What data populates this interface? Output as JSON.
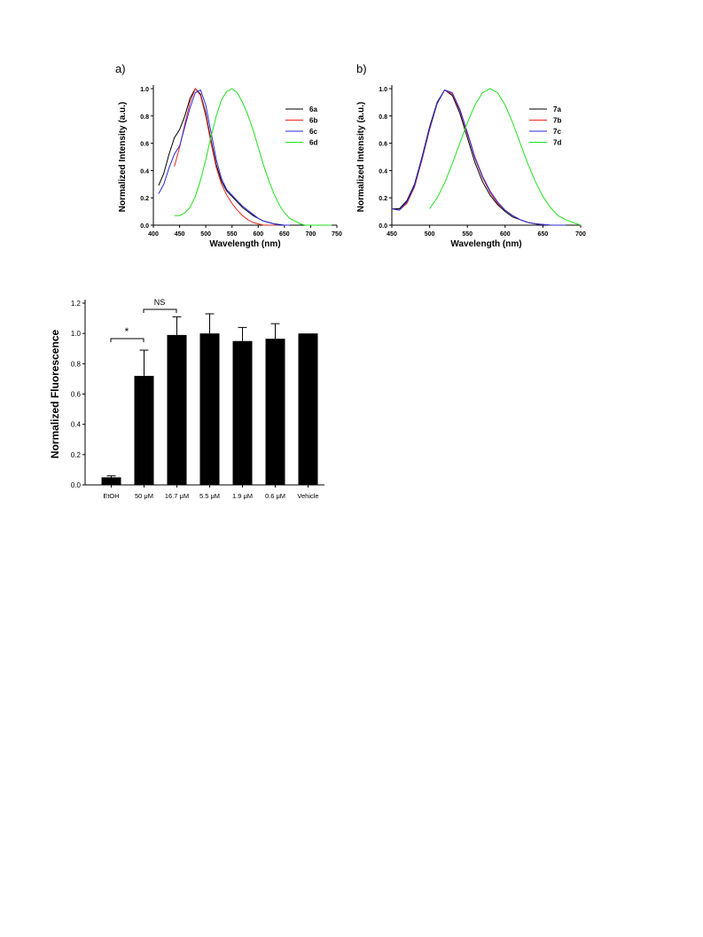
{
  "chart_data": [
    {
      "type": "line",
      "panel_label": "a)",
      "xlabel": "Wavelength (nm)",
      "ylabel": "Normalized Intensity (a.u.)",
      "xlim": [
        400,
        750
      ],
      "xticks": [
        400,
        450,
        500,
        550,
        600,
        650,
        700,
        750
      ],
      "ylim": [
        0,
        1
      ],
      "yticks": [
        {
          "value": 0,
          "label": "0.0"
        },
        0.2,
        0.4,
        0.6,
        0.8,
        {
          "value": 1,
          "label": "1.0"
        }
      ],
      "legend": "upper right",
      "x": [
        410,
        420,
        430,
        440,
        450,
        460,
        470,
        480,
        490,
        500,
        510,
        520,
        530,
        540,
        550,
        560,
        570,
        580,
        590,
        600,
        610,
        620,
        630,
        640,
        650,
        660,
        670,
        680,
        690,
        700,
        710,
        720,
        730,
        740
      ],
      "series": [
        {
          "name": "6a",
          "color": "#000000",
          "values": [
            0.29,
            0.38,
            0.52,
            0.64,
            0.7,
            0.8,
            0.93,
            1.0,
            0.96,
            0.82,
            0.62,
            0.44,
            0.32,
            0.25,
            0.21,
            0.17,
            0.13,
            0.1,
            0.07,
            0.05,
            0.03,
            0.02,
            0.01,
            0.005,
            0,
            0,
            0,
            0,
            null,
            null,
            null,
            null,
            null,
            null
          ]
        },
        {
          "name": "6b",
          "color": "#e8281e",
          "values": [
            null,
            null,
            null,
            0.43,
            0.57,
            0.74,
            0.9,
            1.0,
            0.95,
            0.8,
            0.6,
            0.42,
            0.3,
            0.22,
            0.16,
            0.11,
            0.07,
            0.04,
            0.02,
            0.01,
            0,
            0,
            0,
            0,
            0,
            null,
            null,
            null,
            null,
            null,
            null,
            null,
            null,
            null
          ]
        },
        {
          "name": "6c",
          "color": "#2a2ae0",
          "values": [
            0.23,
            0.3,
            0.42,
            0.52,
            0.58,
            0.72,
            0.86,
            0.97,
            0.99,
            0.88,
            0.68,
            0.48,
            0.34,
            0.26,
            0.22,
            0.18,
            0.14,
            0.11,
            0.08,
            0.05,
            0.03,
            0.02,
            0.01,
            0,
            0,
            0,
            null,
            null,
            null,
            null,
            null,
            null,
            null,
            null
          ]
        },
        {
          "name": "6d",
          "color": "#22e022",
          "values": [
            null,
            null,
            null,
            0.07,
            0.07,
            0.09,
            0.13,
            0.21,
            0.33,
            0.48,
            0.65,
            0.8,
            0.92,
            0.98,
            1.0,
            0.97,
            0.9,
            0.81,
            0.7,
            0.57,
            0.44,
            0.33,
            0.23,
            0.15,
            0.09,
            0.05,
            0.03,
            0.01,
            0,
            0,
            0,
            0,
            0,
            0
          ]
        }
      ]
    },
    {
      "type": "line",
      "panel_label": "b)",
      "xlabel": "Wavelength (nm)",
      "ylabel": "Normalized Intensity (a.u.)",
      "xlim": [
        450,
        700
      ],
      "xticks": [
        450,
        500,
        550,
        600,
        650,
        700
      ],
      "ylim": [
        0,
        1
      ],
      "yticks": [
        {
          "value": 0,
          "label": "0.0"
        },
        0.2,
        0.4,
        0.6,
        0.8,
        {
          "value": 1,
          "label": "1.0"
        }
      ],
      "legend": "upper right",
      "x": [
        450,
        460,
        470,
        480,
        490,
        500,
        510,
        520,
        530,
        540,
        550,
        560,
        570,
        580,
        590,
        600,
        610,
        620,
        630,
        640,
        650,
        660,
        670,
        680,
        690,
        700
      ],
      "series": [
        {
          "name": "7a",
          "color": "#000000",
          "values": [
            0.12,
            0.12,
            0.18,
            0.3,
            0.5,
            0.72,
            0.9,
            0.99,
            0.95,
            0.82,
            0.64,
            0.46,
            0.32,
            0.22,
            0.15,
            0.1,
            0.06,
            0.04,
            0.02,
            0.01,
            0.005,
            0,
            0,
            0,
            null,
            null
          ]
        },
        {
          "name": "7b",
          "color": "#e8281e",
          "values": [
            0.12,
            0.11,
            0.16,
            0.28,
            0.48,
            0.7,
            0.89,
            0.99,
            0.96,
            0.84,
            0.67,
            0.49,
            0.35,
            0.24,
            0.16,
            0.11,
            0.07,
            0.04,
            0.02,
            0.01,
            0.005,
            0,
            0,
            0,
            null,
            null
          ]
        },
        {
          "name": "7c",
          "color": "#2a2ae0",
          "values": [
            0.12,
            0.11,
            0.17,
            0.29,
            0.49,
            0.71,
            0.89,
            0.99,
            0.97,
            0.85,
            0.68,
            0.5,
            0.36,
            0.25,
            0.17,
            0.11,
            0.07,
            0.04,
            0.02,
            0.01,
            0.005,
            0,
            0,
            0,
            null,
            null
          ]
        },
        {
          "name": "7d",
          "color": "#22e022",
          "values": [
            null,
            null,
            null,
            null,
            null,
            0.12,
            0.2,
            0.31,
            0.45,
            0.6,
            0.75,
            0.88,
            0.97,
            1.0,
            0.97,
            0.88,
            0.75,
            0.6,
            0.45,
            0.32,
            0.21,
            0.13,
            0.07,
            0.04,
            0.02,
            0
          ]
        }
      ]
    },
    {
      "type": "bar",
      "ylabel": "Normalized Fluorescence",
      "categories": [
        "EtOH",
        "50 μM",
        "16.7 μM",
        "5.5 μM",
        "1.9 μM",
        "0.6 μM",
        "Vehicle"
      ],
      "values": [
        0.05,
        0.72,
        0.99,
        1.0,
        0.95,
        0.965,
        1.0
      ],
      "errors": [
        0.01,
        0.17,
        0.12,
        0.13,
        0.09,
        0.1,
        null
      ],
      "color": "#000000",
      "ylim": [
        0,
        1.2
      ],
      "yticks": [
        {
          "value": 0,
          "label": "0.0"
        },
        0.2,
        0.4,
        0.6,
        0.8,
        {
          "value": 1,
          "label": "1.0"
        },
        1.2
      ],
      "annotations": [
        "*",
        "NS"
      ]
    }
  ]
}
